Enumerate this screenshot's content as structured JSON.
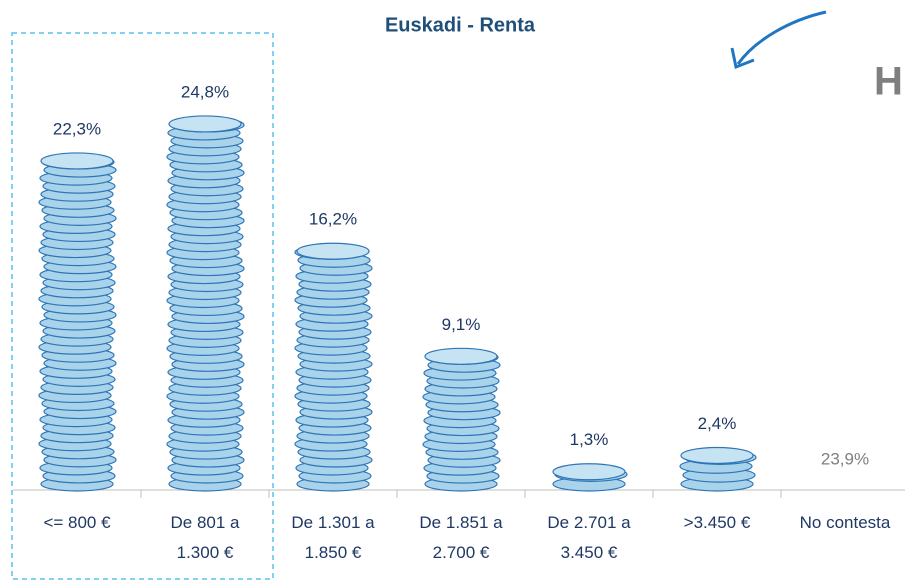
{
  "chart_data": {
    "type": "coin-bar",
    "title": "Euskadi - Renta",
    "annotation": "H",
    "categories": [
      "<= 800 €",
      "De 801 a\n1.300 €",
      "De 1.301 a\n1.850 €",
      "De 1.851 a\n2.700 €",
      "De 2.701 a\n3.450 €",
      ">3.450 €",
      "No contesta"
    ],
    "values": [
      22.3,
      24.8,
      16.2,
      9.1,
      1.3,
      2.4,
      23.9
    ],
    "value_labels": [
      "22,3%",
      "24,8%",
      "16,2%",
      "9,1%",
      "1,3%",
      "2,4%",
      "23,9%"
    ],
    "colors": [
      "#a9d3ea",
      "#a9d3ea",
      "#a9d3ea",
      "#a9d3ea",
      "#a9d3ea",
      "#a9d3ea",
      null
    ],
    "label_colors": [
      "#1f3864",
      "#1f3864",
      "#1f3864",
      "#1f3864",
      "#1f3864",
      "#1f3864",
      "#7f7f7f"
    ],
    "ylim": [
      0,
      30
    ]
  }
}
